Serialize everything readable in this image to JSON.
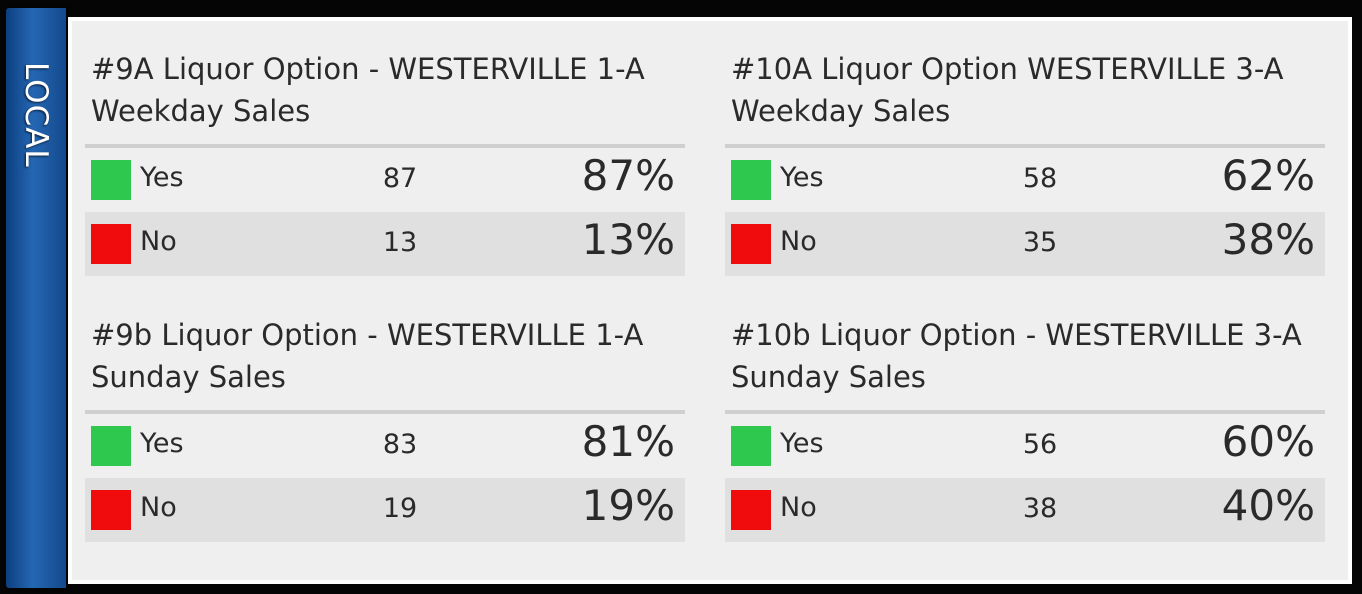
{
  "side_label": "LOCAL",
  "colors": {
    "yes": "#2dc84d",
    "no": "#f00c0c",
    "tab": "#1a5aa5"
  },
  "races": [
    {
      "title_line1": "#9A Liquor Option - WESTERVILLE 1-A",
      "title_line2": "Weekday Sales",
      "rows": [
        {
          "label": "Yes",
          "votes": "87",
          "pct": "87%"
        },
        {
          "label": "No",
          "votes": "13",
          "pct": "13%"
        }
      ]
    },
    {
      "title_line1": "#10A Liquor Option WESTERVILLE 3-A",
      "title_line2": "Weekday Sales",
      "rows": [
        {
          "label": "Yes",
          "votes": "58",
          "pct": "62%"
        },
        {
          "label": "No",
          "votes": "35",
          "pct": "38%"
        }
      ]
    },
    {
      "title_line1": "#9b Liquor Option - WESTERVILLE 1-A",
      "title_line2": "Sunday Sales",
      "rows": [
        {
          "label": "Yes",
          "votes": "83",
          "pct": "81%"
        },
        {
          "label": "No",
          "votes": "19",
          "pct": "19%"
        }
      ]
    },
    {
      "title_line1": "#10b Liquor Option - WESTERVILLE 3-A",
      "title_line2": "Sunday Sales",
      "rows": [
        {
          "label": "Yes",
          "votes": "56",
          "pct": "60%"
        },
        {
          "label": "No",
          "votes": "38",
          "pct": "40%"
        }
      ]
    }
  ]
}
